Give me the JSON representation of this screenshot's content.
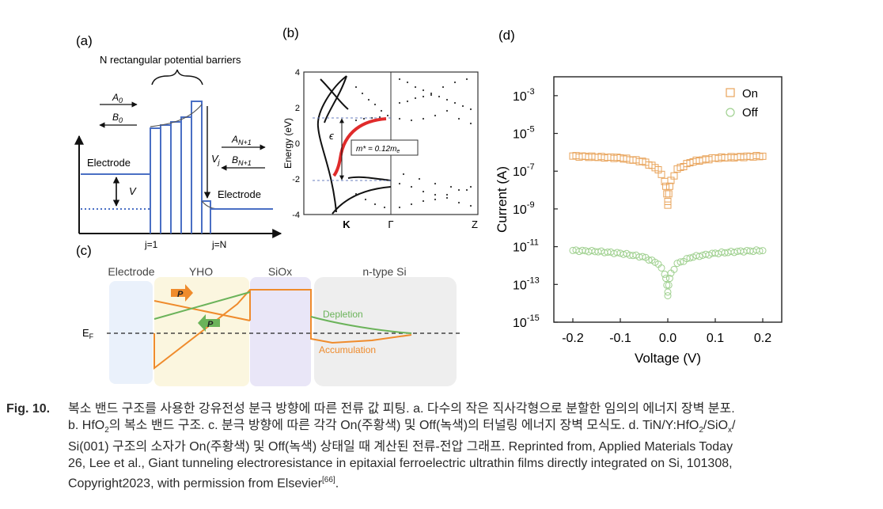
{
  "panel_a": {
    "label": "(a)",
    "top_text": "N rectangular potential barriers",
    "A0": "A",
    "A0_sub": "0",
    "B0": "B",
    "B0_sub": "0",
    "AN1": "A",
    "AN1_sub": "N+1",
    "BN1": "B",
    "BN1_sub": "N+1",
    "electrode_left": "Electrode",
    "electrode_right": "Electrode",
    "V": "V",
    "Vj": "V",
    "Vj_sub": "j",
    "j1": "j=1",
    "jN": "j=N"
  },
  "panel_b": {
    "label": "(b)",
    "ylabel": "Energy (eV)",
    "yticks": [
      "4",
      "2",
      "0",
      "-2",
      "-4"
    ],
    "xticks": [
      "K",
      "Γ",
      "Z"
    ],
    "epsilon": "ϵ",
    "mass_label": "m* = 0.12m",
    "mass_sub": "e"
  },
  "panel_c": {
    "label": "(c)",
    "regions": [
      "Electrode",
      "YHO",
      "SiOx",
      "n-type Si"
    ],
    "ef": "E",
    "ef_sub": "F",
    "p": "P",
    "depletion": "Depletion",
    "accumulation": "Accumulation"
  },
  "panel_d": {
    "label": "(d)",
    "legend_on": "On",
    "legend_off": "Off",
    "on_color": "#e8a35a",
    "off_color": "#9fd08f",
    "xlabel": "Voltage (V)",
    "ylabel": "Current (A)"
  },
  "chart_data": {
    "type": "scatter",
    "title": "",
    "xlabel": "Voltage (V)",
    "ylabel": "Current (A)",
    "xlim": [
      -0.24,
      0.24
    ],
    "ylim_log10": [
      -15,
      -2
    ],
    "yscale": "log",
    "xticks": [
      "-0.2",
      "-0.1",
      "0.0",
      "0.1",
      "0.2"
    ],
    "yticks": [
      {
        "base": "10",
        "exp": "-3"
      },
      {
        "base": "10",
        "exp": "-5"
      },
      {
        "base": "10",
        "exp": "-7"
      },
      {
        "base": "10",
        "exp": "-9"
      },
      {
        "base": "10",
        "exp": "-11"
      },
      {
        "base": "10",
        "exp": "-13"
      },
      {
        "base": "10",
        "exp": "-15"
      }
    ],
    "legend": "top-right",
    "series": [
      {
        "name": "On",
        "color": "#e8a35a",
        "marker": "square",
        "x": [
          -0.2,
          -0.15,
          -0.1,
          -0.05,
          -0.02,
          -0.005,
          0.0,
          0.005,
          0.02,
          0.05,
          0.1,
          0.15,
          0.2
        ],
        "log10_y": [
          -6.2,
          -6.25,
          -6.3,
          -6.5,
          -6.9,
          -7.6,
          -8.6,
          -7.6,
          -6.9,
          -6.5,
          -6.3,
          -6.25,
          -6.2
        ]
      },
      {
        "name": "Off",
        "color": "#9fd08f",
        "marker": "circle",
        "x": [
          -0.2,
          -0.15,
          -0.1,
          -0.05,
          -0.02,
          -0.005,
          0.0,
          0.005,
          0.02,
          0.05,
          0.1,
          0.15,
          0.2
        ],
        "log10_y": [
          -11.2,
          -11.25,
          -11.35,
          -11.55,
          -11.9,
          -12.5,
          -13.4,
          -12.5,
          -11.9,
          -11.55,
          -11.35,
          -11.25,
          -11.2
        ]
      }
    ]
  },
  "caption": {
    "label": "Fig. 10.",
    "line1": "복소 밴드 구조를 사용한 강유전성 분극 방향에 따른 전류 값 피팅. a. 다수의 작은 직사각형으로 분할한 임의의 에너지 장벽 분포.",
    "line2a": "b. HfO",
    "line2b": "2",
    "line2c": "의 복소 밴드 구조. c. 분극 방향에 따른 각각 On(주황색) 및 Off(녹색)의 터널링 에너지 장벽 모식도. d. TiN/Y:HfO",
    "line2d": "2",
    "line2e": "/SiO",
    "line2f": "x",
    "line2g": "/",
    "line3": "Si(001) 구조의 소자가 On(주황색) 및 Off(녹색) 상태일 때 계산된 전류-전압 그래프. Reprinted from, Applied Materials Today",
    "line4": "26, Lee et al., Giant tunneling electroresistance in epitaxial ferroelectric ultrathin films directly integrated on Si, 101308,",
    "line5a": "Copyright2023, with permission from Elsevier",
    "line5b": "[66]",
    "line5c": "."
  }
}
